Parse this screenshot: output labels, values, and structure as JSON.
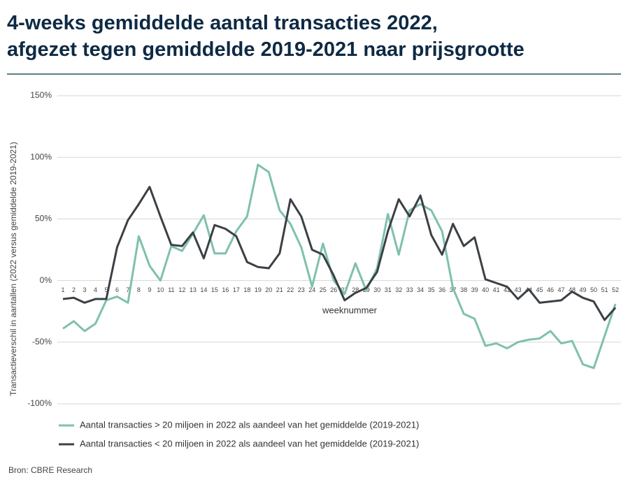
{
  "chart_data": {
    "type": "line",
    "title": [
      "4-weeks gemiddelde aantal transacties 2022,",
      "afgezet tegen gemiddelde 2019-2021 naar prijsgrootte"
    ],
    "y_label": "Transactieverschil in aantallen (2022 versus gemiddelde 2019-2021)",
    "x_label": "weeknummer",
    "source": "Bron: CBRE Research",
    "categories": [
      "1",
      "2",
      "3",
      "4",
      "5",
      "6",
      "7",
      "8",
      "9",
      "10",
      "11",
      "12",
      "13",
      "14",
      "15",
      "16",
      "17",
      "18",
      "19",
      "20",
      "21",
      "22",
      "23",
      "24",
      "25",
      "26",
      "27",
      "28",
      "29",
      "30",
      "31",
      "32",
      "33",
      "34",
      "35",
      "36",
      "37",
      "38",
      "39",
      "40",
      "41",
      "42",
      "43",
      "44",
      "45",
      "46",
      "47",
      "48",
      "49",
      "50",
      "51",
      "52"
    ],
    "series": [
      {
        "name": "Aantal transacties > 20 miljoen in 2022 als aandeel van het gemiddelde (2019-2021)",
        "color": "#7fc0ae",
        "values": [
          -39,
          -33,
          -41,
          -35,
          -16,
          -13,
          -18,
          36,
          12,
          0,
          28,
          24,
          38,
          53,
          22,
          22,
          40,
          52,
          94,
          88,
          57,
          46,
          27,
          -5,
          30,
          0,
          -11,
          14,
          -8,
          10,
          54,
          21,
          57,
          62,
          57,
          40,
          -6,
          -27,
          -31,
          -53,
          -51,
          -55,
          -50,
          -48,
          -47,
          -41,
          -51,
          -49,
          -68,
          -71,
          -45,
          -19
        ]
      },
      {
        "name": "Aantal transacties < 20 miljoen in 2022 als aandeel van het gemiddelde (2019-2021)",
        "color": "#3b4045",
        "values": [
          -15,
          -14,
          -18,
          -15,
          -15,
          27,
          49,
          62,
          76,
          52,
          29,
          28,
          39,
          18,
          45,
          42,
          36,
          15,
          11,
          10,
          22,
          66,
          52,
          25,
          21,
          4,
          -16,
          -10,
          -6,
          7,
          40,
          66,
          52,
          69,
          37,
          21,
          46,
          28,
          35,
          1,
          -2,
          -5,
          -15,
          -7,
          -18,
          -17,
          -16,
          -9,
          -14,
          -17,
          -32,
          -22
        ]
      }
    ],
    "ylim": [
      -100,
      150
    ],
    "yticks": [
      {
        "value": -100,
        "label": "-100%"
      },
      {
        "value": -50,
        "label": "-50%"
      },
      {
        "value": 0,
        "label": "0%"
      },
      {
        "value": 50,
        "label": "50%"
      },
      {
        "value": 100,
        "label": "100%"
      },
      {
        "value": 150,
        "label": "150%"
      }
    ],
    "grid": true
  }
}
